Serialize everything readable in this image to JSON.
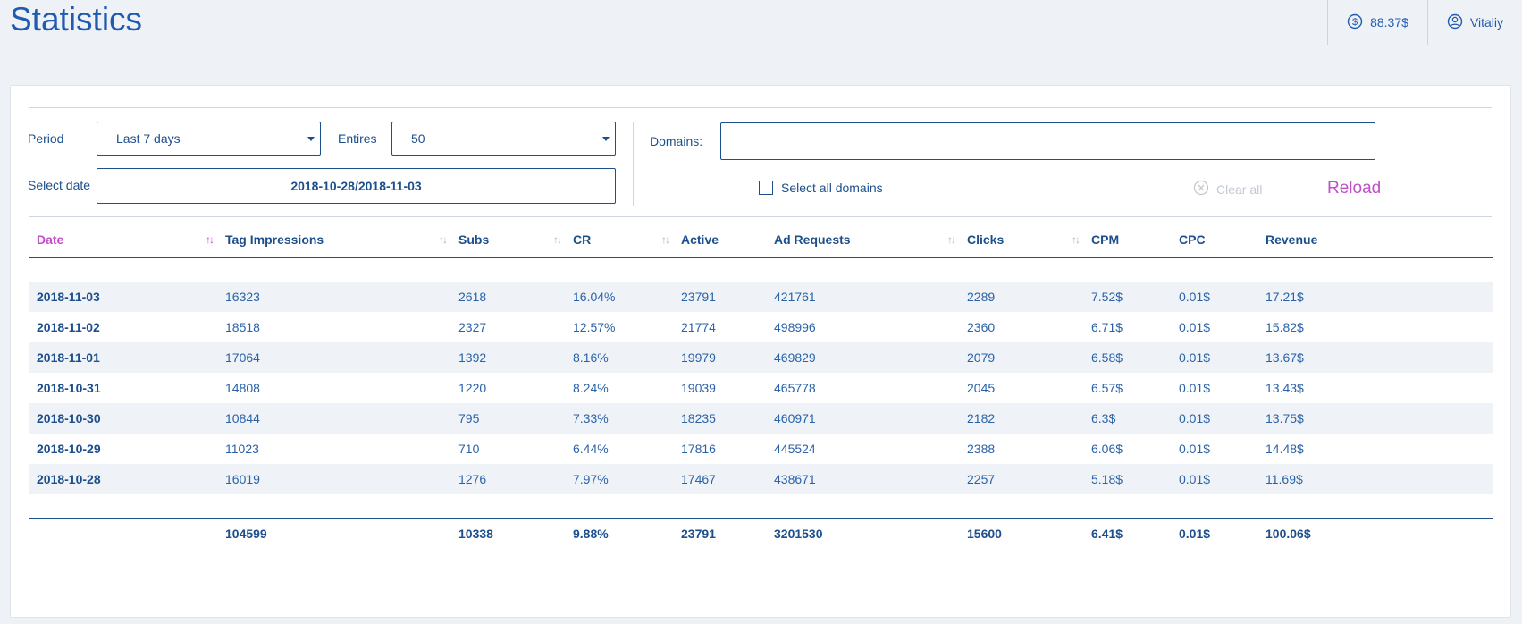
{
  "page": {
    "title": "Statistics"
  },
  "header": {
    "balance": "88.37$",
    "user": "Vitaliy",
    "icons": {
      "balance": "dollar-circle-icon",
      "user": "user-circle-icon"
    }
  },
  "filters": {
    "period_label": "Period",
    "period_value": "Last 7 days",
    "entries_label": "Entires",
    "entries_value": "50",
    "select_date_label": "Select date",
    "date_range": "2018-10-28/2018-11-03",
    "domains_label": "Domains:",
    "domains_value": "",
    "select_all_label": "Select all domains",
    "clear_all_label": "Clear all",
    "reload_label": "Reload"
  },
  "table": {
    "columns": [
      "Date",
      "Tag Impressions",
      "Subs",
      "CR",
      "Active",
      "Ad Requests",
      "Clicks",
      "CPM",
      "CPC",
      "Revenue"
    ],
    "rows": [
      [
        "2018-11-03",
        "16323",
        "2618",
        "16.04%",
        "23791",
        "421761",
        "2289",
        "7.52$",
        "0.01$",
        "17.21$"
      ],
      [
        "2018-11-02",
        "18518",
        "2327",
        "12.57%",
        "21774",
        "498996",
        "2360",
        "6.71$",
        "0.01$",
        "15.82$"
      ],
      [
        "2018-11-01",
        "17064",
        "1392",
        "8.16%",
        "19979",
        "469829",
        "2079",
        "6.58$",
        "0.01$",
        "13.67$"
      ],
      [
        "2018-10-31",
        "14808",
        "1220",
        "8.24%",
        "19039",
        "465778",
        "2045",
        "6.57$",
        "0.01$",
        "13.43$"
      ],
      [
        "2018-10-30",
        "10844",
        "795",
        "7.33%",
        "18235",
        "460971",
        "2182",
        "6.3$",
        "0.01$",
        "13.75$"
      ],
      [
        "2018-10-29",
        "11023",
        "710",
        "6.44%",
        "17816",
        "445524",
        "2388",
        "6.06$",
        "0.01$",
        "14.48$"
      ],
      [
        "2018-10-28",
        "16019",
        "1276",
        "7.97%",
        "17467",
        "438671",
        "2257",
        "5.18$",
        "0.01$",
        "11.69$"
      ]
    ],
    "totals": [
      "",
      "104599",
      "10338",
      "9.88%",
      "23791",
      "3201530",
      "15600",
      "6.41$",
      "0.01$",
      "100.06$"
    ]
  },
  "colors": {
    "primary": "#1d4f8c",
    "title": "#1f5bb0",
    "accent": "#c04fc8",
    "muted": "#c3c9d2",
    "stripe": "#eff3f7"
  }
}
